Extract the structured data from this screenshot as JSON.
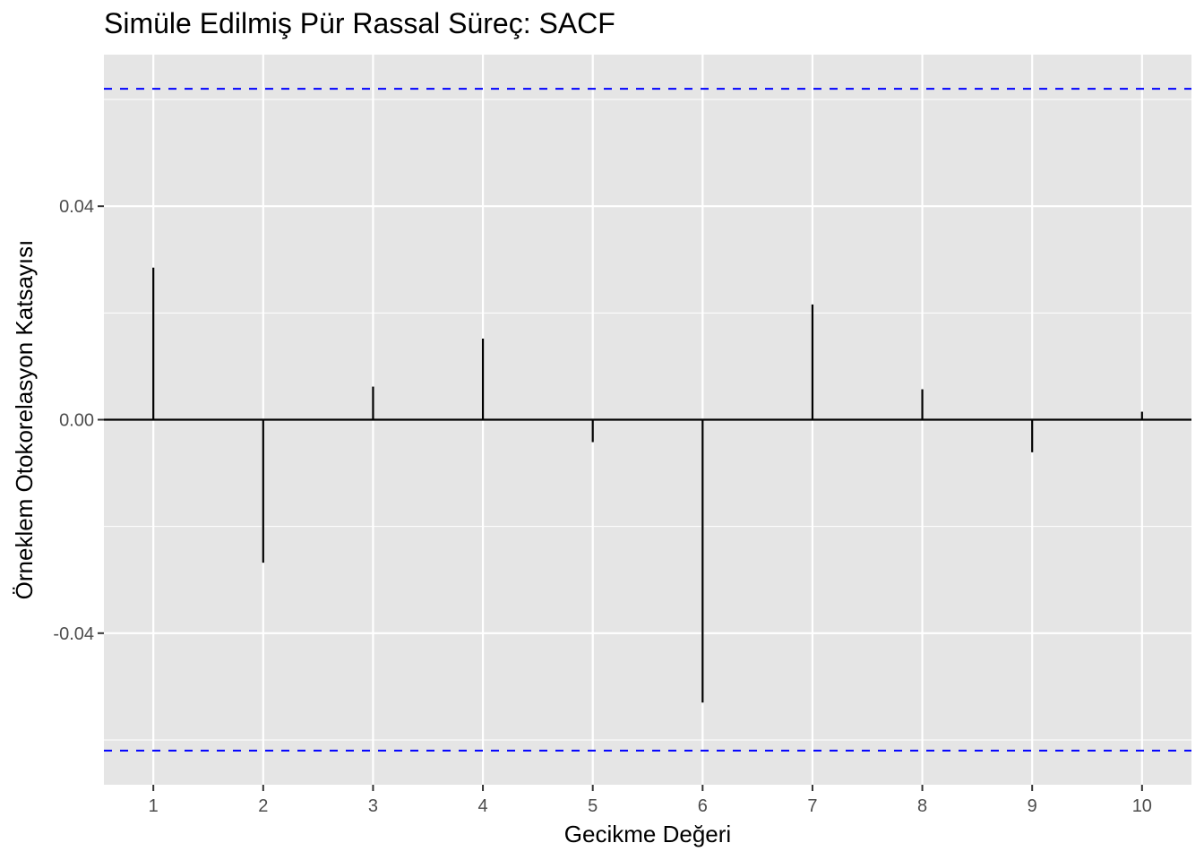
{
  "chart_data": {
    "type": "bar",
    "title": "Simüle Edilmiş Pür Rassal Süreç: SACF",
    "xlabel": "Gecikme Değeri",
    "ylabel": "Örneklem Otokorelasyon Katsayısı",
    "x": [
      1,
      2,
      3,
      4,
      5,
      6,
      7,
      8,
      9,
      10
    ],
    "x_tick_labels": [
      "1",
      "2",
      "3",
      "4",
      "5",
      "6",
      "7",
      "8",
      "9",
      "10"
    ],
    "values": [
      0.0285,
      -0.0268,
      0.0062,
      0.0152,
      -0.0042,
      -0.053,
      0.0216,
      0.0057,
      -0.0061,
      0.0015
    ],
    "y_ticks": [
      -0.04,
      0.0,
      0.04
    ],
    "y_tick_labels": [
      "-0.04",
      "0.00",
      "0.04"
    ],
    "ylim": [
      -0.0684,
      0.0684
    ],
    "xlim": [
      0.55,
      10.45
    ],
    "confidence_band": 0.062,
    "grid": true,
    "colors": {
      "panel_background": "#e5e5e5",
      "grid": "#ffffff",
      "segments": "#000000",
      "zero_line": "#000000",
      "confidence_lines": "#0000ff",
      "tick_text": "#4d4d4d"
    }
  }
}
